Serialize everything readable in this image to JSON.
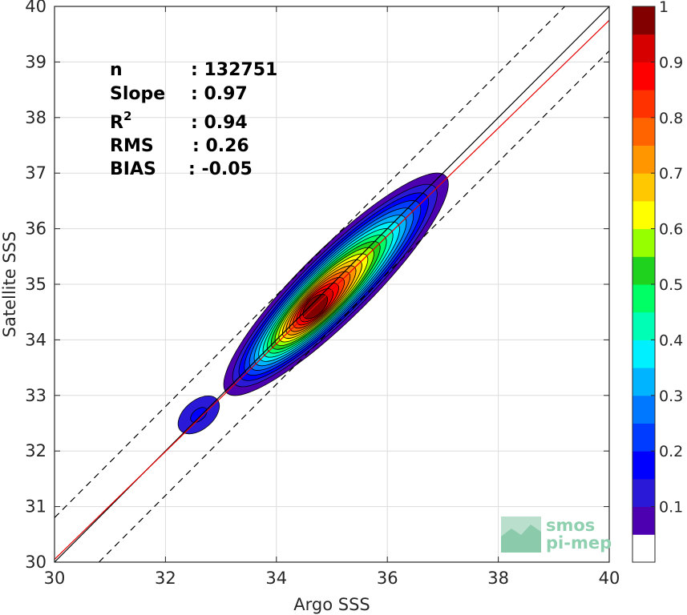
{
  "chart_data": {
    "type": "heatmap",
    "xlabel": "Argo SSS",
    "ylabel": "Satellite SSS",
    "xlim": [
      30,
      40
    ],
    "ylim": [
      30,
      40
    ],
    "x_ticks": [
      "30",
      "32",
      "34",
      "36",
      "38",
      "40"
    ],
    "y_ticks": [
      "30",
      "31",
      "32",
      "33",
      "34",
      "35",
      "36",
      "37",
      "38",
      "39",
      "40"
    ],
    "grid": true,
    "stats": [
      {
        "label": "n",
        "value": ": 132751"
      },
      {
        "label": "Slope",
        "value": ": 0.97"
      },
      {
        "label": "R",
        "sup": "2",
        "value": ": 0.94"
      },
      {
        "label": "RMS",
        "value": ": 0.26"
      },
      {
        "label": "BIAS",
        "value": ": -0.05"
      }
    ],
    "lines": [
      {
        "kind": "identity",
        "color": "#000000",
        "x": [
          30,
          40
        ],
        "y": [
          30,
          40
        ]
      },
      {
        "kind": "regression",
        "color": "#e60000",
        "slope": 0.97,
        "x": [
          30,
          40
        ],
        "y": [
          30.05,
          39.75
        ]
      },
      {
        "kind": "upper-bound",
        "color": "#000000",
        "dashed": true,
        "x": [
          30,
          39.2
        ],
        "y": [
          30.8,
          40
        ]
      },
      {
        "kind": "lower-bound",
        "color": "#000000",
        "dashed": true,
        "x": [
          30.8,
          40
        ],
        "y": [
          30,
          39.2
        ]
      }
    ],
    "density": {
      "normalized": true,
      "max": 1,
      "main_blob": {
        "x_from": 33.1,
        "y_from": 33.05,
        "x_to": 37.05,
        "y_to": 36.95,
        "peak_x": 34.7,
        "peak_y": 34.6
      },
      "secondary_blob": {
        "center_x": 32.6,
        "center_y": 32.65,
        "peak": 0.15
      }
    },
    "colorbar": {
      "ticks": [
        "0.1",
        "0.2",
        "0.3",
        "0.4",
        "0.5",
        "0.6",
        "0.7",
        "0.8",
        "0.9",
        "1"
      ],
      "ymin": 0,
      "ymax": 1,
      "levels": [
        {
          "from": 0.05,
          "to": 0.1,
          "color": "#4c00b0"
        },
        {
          "from": 0.1,
          "to": 0.15,
          "color": "#2a1ad8"
        },
        {
          "from": 0.15,
          "to": 0.2,
          "color": "#0000ff"
        },
        {
          "from": 0.2,
          "to": 0.25,
          "color": "#003cff"
        },
        {
          "from": 0.25,
          "to": 0.3,
          "color": "#0078ff"
        },
        {
          "from": 0.3,
          "to": 0.35,
          "color": "#00b4ff"
        },
        {
          "from": 0.35,
          "to": 0.4,
          "color": "#00f0ff"
        },
        {
          "from": 0.4,
          "to": 0.45,
          "color": "#00ffb4"
        },
        {
          "from": 0.45,
          "to": 0.5,
          "color": "#00ff64"
        },
        {
          "from": 0.5,
          "to": 0.55,
          "color": "#1ed21e"
        },
        {
          "from": 0.55,
          "to": 0.6,
          "color": "#96ff00"
        },
        {
          "from": 0.6,
          "to": 0.65,
          "color": "#ffff00"
        },
        {
          "from": 0.65,
          "to": 0.7,
          "color": "#ffc800"
        },
        {
          "from": 0.7,
          "to": 0.75,
          "color": "#ff9600"
        },
        {
          "from": 0.75,
          "to": 0.8,
          "color": "#ff6400"
        },
        {
          "from": 0.8,
          "to": 0.85,
          "color": "#ff3200"
        },
        {
          "from": 0.85,
          "to": 0.9,
          "color": "#ff0000"
        },
        {
          "from": 0.9,
          "to": 0.95,
          "color": "#d70000"
        },
        {
          "from": 0.95,
          "to": 1.0,
          "color": "#820000"
        }
      ]
    },
    "logo": {
      "line1": "smos",
      "line2": "pi-mep"
    }
  }
}
